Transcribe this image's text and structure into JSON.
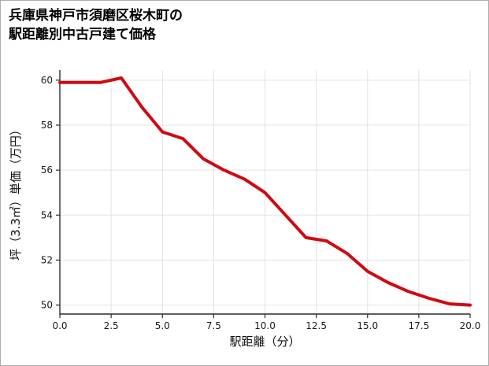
{
  "chart_data": {
    "type": "line",
    "title_lines": [
      "兵庫県神戸市須磨区桜木町の",
      "駅距離別中古戸建て価格"
    ],
    "xlabel": "駅距離（分）",
    "ylabel": "坪（3.3㎡）単価（万円）",
    "x": [
      0,
      1,
      2,
      3,
      4,
      5,
      6,
      7,
      8,
      9,
      10,
      11,
      12,
      13,
      14,
      15,
      16,
      17,
      18,
      19,
      20
    ],
    "values": [
      59.9,
      59.9,
      59.9,
      60.1,
      58.8,
      57.7,
      57.4,
      56.5,
      56.0,
      55.6,
      55.0,
      54.0,
      53.0,
      52.85,
      52.3,
      51.5,
      51.0,
      50.6,
      50.3,
      50.05,
      50.0
    ],
    "xticks": [
      0,
      2.5,
      5,
      7.5,
      10,
      12.5,
      15,
      17.5,
      20
    ],
    "xtick_labels": [
      "0.0",
      "2.5",
      "5.0",
      "7.5",
      "10.0",
      "12.5",
      "15.0",
      "17.5",
      "20.0"
    ],
    "yticks": [
      50,
      52,
      54,
      56,
      58,
      60
    ],
    "ytick_labels": [
      "50",
      "52",
      "54",
      "56",
      "58",
      "60"
    ],
    "xlim": [
      0,
      20
    ],
    "ylim": [
      49.6,
      60.45
    ],
    "grid": true,
    "legend": "none",
    "line_color": "#cf0a12",
    "grid_color": "#e3e3e3",
    "axis_color": "#2a2a2a",
    "tick_label_color": "#1a1a1a"
  }
}
